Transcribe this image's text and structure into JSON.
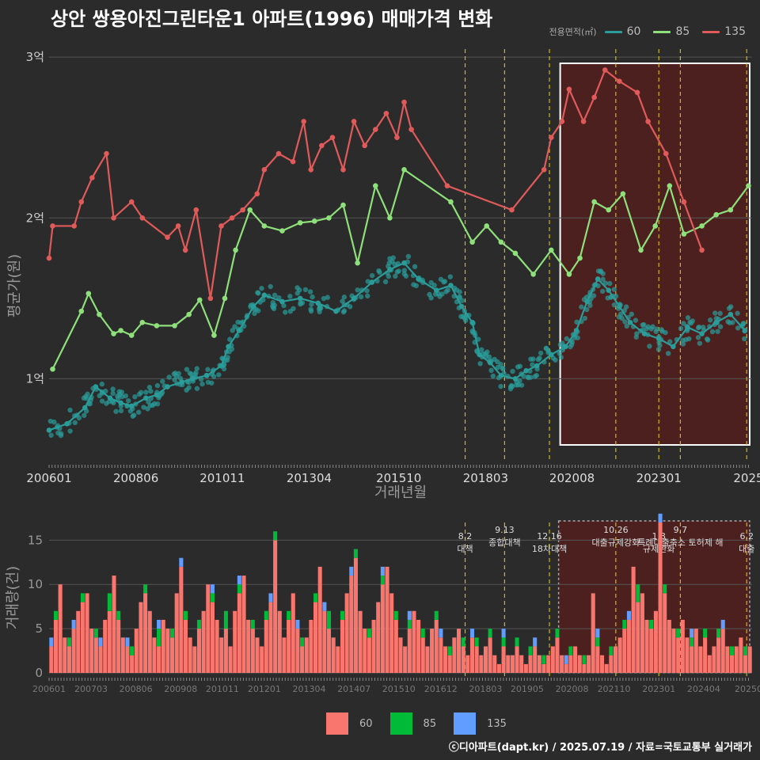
{
  "title": "상안 쌍용아진그린타운1 아파트(1996) 매매가격 변화",
  "credit": "ⓒ디아파트(dapt.kr) / 2025.07.19 / 자료=국토교통부 실거래가",
  "colors": {
    "s60": "#2a9d9a",
    "s85": "#8ee07a",
    "s135": "#e05a5a",
    "bar60": "#f8766d",
    "bar85": "#00ba38",
    "bar135": "#619cff",
    "vline": "#d4b800",
    "bg": "#2b2b2b",
    "grid": "#555555"
  },
  "legend_top": {
    "title": "전용면적(㎡)",
    "items": [
      {
        "label": "60",
        "color": "#2a9d9a"
      },
      {
        "label": "85",
        "color": "#8ee07a"
      },
      {
        "label": "135",
        "color": "#e05a5a"
      }
    ]
  },
  "legend_bottom": {
    "items": [
      {
        "label": "60",
        "color": "#f8766d"
      },
      {
        "label": "85",
        "color": "#00ba38"
      },
      {
        "label": "135",
        "color": "#619cff"
      }
    ]
  },
  "chart_data": [
    {
      "type": "line",
      "name": "price",
      "xlabel": "거래년월",
      "ylabel": "평균가(원)",
      "xlim": [
        2006.0,
        2025.6
      ],
      "ylim": [
        0.5,
        3.05
      ],
      "yticks": [
        {
          "v": 1,
          "label": "1억"
        },
        {
          "v": 2,
          "label": "2억"
        },
        {
          "v": 3,
          "label": "3억"
        }
      ],
      "xticks": [
        {
          "v": 2006.0,
          "label": "200601"
        },
        {
          "v": 2008.42,
          "label": "200806"
        },
        {
          "v": 2010.83,
          "label": "201011"
        },
        {
          "v": 2013.25,
          "label": "201304"
        },
        {
          "v": 2015.75,
          "label": "201510"
        },
        {
          "v": 2018.17,
          "label": "201803"
        },
        {
          "v": 2020.58,
          "label": "202008"
        },
        {
          "v": 2023.0,
          "label": "202301"
        },
        {
          "v": 2025.5,
          "label": "2025"
        }
      ],
      "highlight_range": [
        2020.25,
        2025.6
      ],
      "series": [
        {
          "name": "60",
          "color": "#2a9d9a",
          "x": [
            2006.0,
            2006.5,
            2007.0,
            2007.3,
            2007.7,
            2008.0,
            2008.3,
            2008.7,
            2009.0,
            2009.3,
            2009.7,
            2010.0,
            2010.4,
            2010.8,
            2011.0,
            2011.3,
            2011.7,
            2012.0,
            2012.5,
            2013.0,
            2013.5,
            2014.0,
            2014.5,
            2015.0,
            2015.5,
            2015.9,
            2016.3,
            2016.8,
            2017.2,
            2017.5,
            2017.8,
            2018.0,
            2018.3,
            2018.6,
            2019.0,
            2019.3,
            2019.6,
            2020.0,
            2020.4,
            2020.7,
            2021.0,
            2021.3,
            2021.6,
            2021.9,
            2022.2,
            2022.6,
            2023.0,
            2023.4,
            2023.8,
            2024.2,
            2024.6,
            2025.0,
            2025.4
          ],
          "values": [
            0.68,
            0.72,
            0.82,
            0.95,
            0.88,
            0.85,
            0.83,
            0.88,
            0.9,
            0.95,
            0.98,
            1.0,
            1.02,
            1.08,
            1.2,
            1.3,
            1.45,
            1.52,
            1.48,
            1.5,
            1.47,
            1.42,
            1.5,
            1.6,
            1.68,
            1.72,
            1.62,
            1.55,
            1.58,
            1.45,
            1.35,
            1.15,
            1.1,
            1.02,
            1.0,
            1.05,
            1.08,
            1.15,
            1.2,
            1.3,
            1.48,
            1.62,
            1.55,
            1.45,
            1.35,
            1.28,
            1.25,
            1.2,
            1.32,
            1.28,
            1.35,
            1.4,
            1.3
          ]
        },
        {
          "name": "85",
          "color": "#8ee07a",
          "x": [
            2006.1,
            2006.9,
            2007.1,
            2007.4,
            2007.8,
            2008.0,
            2008.3,
            2008.6,
            2009.0,
            2009.5,
            2009.9,
            2010.2,
            2010.6,
            2010.9,
            2011.2,
            2011.6,
            2012.0,
            2012.5,
            2013.0,
            2013.4,
            2013.8,
            2014.2,
            2014.6,
            2015.1,
            2015.5,
            2015.9,
            2017.2,
            2017.8,
            2018.2,
            2018.6,
            2019.0,
            2019.5,
            2020.0,
            2020.5,
            2020.8,
            2021.2,
            2021.6,
            2022.0,
            2022.5,
            2022.9,
            2023.3,
            2023.7,
            2024.2,
            2024.6,
            2025.0,
            2025.5
          ],
          "values": [
            1.06,
            1.42,
            1.53,
            1.4,
            1.28,
            1.3,
            1.27,
            1.35,
            1.33,
            1.33,
            1.4,
            1.49,
            1.27,
            1.5,
            1.8,
            2.05,
            1.95,
            1.92,
            1.97,
            1.98,
            2.0,
            2.08,
            1.72,
            2.2,
            2.0,
            2.3,
            2.1,
            1.85,
            1.95,
            1.85,
            1.78,
            1.65,
            1.8,
            1.65,
            1.75,
            2.1,
            2.05,
            2.15,
            1.8,
            1.95,
            2.2,
            1.9,
            1.95,
            2.02,
            2.05,
            2.2
          ]
        },
        {
          "name": "135",
          "color": "#e05a5a",
          "x": [
            2006.0,
            2006.1,
            2006.7,
            2006.9,
            2007.2,
            2007.6,
            2007.8,
            2008.3,
            2008.6,
            2009.3,
            2009.6,
            2009.8,
            2010.1,
            2010.5,
            2010.8,
            2011.1,
            2011.4,
            2011.8,
            2012.0,
            2012.4,
            2012.8,
            2013.1,
            2013.3,
            2013.6,
            2013.9,
            2014.2,
            2014.5,
            2014.8,
            2015.1,
            2015.4,
            2015.7,
            2015.9,
            2016.1,
            2017.1,
            2018.9,
            2019.8,
            2020.0,
            2020.3,
            2020.5,
            2020.9,
            2021.2,
            2021.5,
            2021.9,
            2022.4,
            2022.7,
            2023.2,
            2023.7,
            2024.2
          ],
          "values": [
            1.75,
            1.95,
            1.95,
            2.1,
            2.25,
            2.4,
            2.0,
            2.1,
            2.0,
            1.88,
            1.95,
            1.8,
            2.05,
            1.5,
            1.95,
            2.0,
            2.05,
            2.15,
            2.3,
            2.4,
            2.35,
            2.6,
            2.3,
            2.45,
            2.5,
            2.3,
            2.6,
            2.45,
            2.55,
            2.65,
            2.5,
            2.72,
            2.55,
            2.2,
            2.05,
            2.3,
            2.5,
            2.6,
            2.8,
            2.6,
            2.75,
            2.92,
            2.85,
            2.78,
            2.6,
            2.4,
            2.1,
            1.8
          ]
        }
      ]
    },
    {
      "type": "bar",
      "name": "volume",
      "ylabel": "거래량(건)",
      "ylim": [
        0,
        17
      ],
      "yticks": [
        0,
        5,
        10,
        15
      ],
      "xticks": [
        {
          "v": 2006.0,
          "label": "200601"
        },
        {
          "v": 2007.17,
          "label": "200703"
        },
        {
          "v": 2008.42,
          "label": "200806"
        },
        {
          "v": 2009.67,
          "label": "200908"
        },
        {
          "v": 2010.83,
          "label": "201011"
        },
        {
          "v": 2012.0,
          "label": "201201"
        },
        {
          "v": 2013.25,
          "label": "201304"
        },
        {
          "v": 2014.5,
          "label": "201407"
        },
        {
          "v": 2015.75,
          "label": "201510"
        },
        {
          "v": 2016.92,
          "label": "201612"
        },
        {
          "v": 2018.17,
          "label": "201803"
        },
        {
          "v": 2019.33,
          "label": "201905"
        },
        {
          "v": 2020.58,
          "label": "202008"
        },
        {
          "v": 2021.75,
          "label": "202110"
        },
        {
          "v": 2023.0,
          "label": "202301"
        },
        {
          "v": 2024.25,
          "label": "202404"
        },
        {
          "v": 2025.5,
          "label": "20250"
        }
      ],
      "series": [
        {
          "name": "60",
          "color": "#f8766d",
          "values": [
            3,
            6,
            10,
            4,
            3,
            5,
            7,
            8,
            9,
            5,
            4,
            3,
            6,
            7,
            11,
            6,
            4,
            3,
            2,
            5,
            8,
            9,
            7,
            4,
            3,
            6,
            5,
            4,
            9,
            12,
            6,
            4,
            3,
            5,
            7,
            10,
            8,
            6,
            4,
            5,
            3,
            7,
            9,
            11,
            6,
            5,
            4,
            3,
            6,
            8,
            15,
            7,
            4,
            6,
            9,
            5,
            3,
            4,
            6,
            8,
            12,
            7,
            5,
            4,
            3,
            6,
            9,
            11,
            13,
            7,
            5,
            4,
            6,
            8,
            10,
            12,
            9,
            6,
            4,
            3,
            5,
            7,
            6,
            4,
            3,
            5,
            6,
            4,
            3,
            2,
            4,
            5,
            3,
            2,
            4,
            3,
            2,
            3,
            4,
            2,
            1,
            3,
            2,
            2,
            3,
            2,
            1,
            2,
            3,
            2,
            1,
            2,
            3,
            4,
            2,
            1,
            2,
            3,
            2,
            1,
            2,
            9,
            3,
            2,
            1,
            2,
            3,
            4,
            5,
            6,
            12,
            8,
            9,
            6,
            5,
            7,
            17,
            9,
            6,
            5,
            4,
            6,
            4,
            3,
            5,
            3,
            4,
            2,
            3,
            4,
            5,
            3,
            2,
            3,
            4,
            2,
            3
          ]
        },
        {
          "name": "85",
          "color": "#00ba38",
          "values": [
            0,
            1,
            0,
            0,
            1,
            0,
            0,
            1,
            0,
            0,
            1,
            0,
            0,
            2,
            0,
            1,
            0,
            0,
            1,
            0,
            0,
            1,
            0,
            0,
            2,
            0,
            0,
            1,
            0,
            0,
            1,
            0,
            0,
            1,
            0,
            0,
            1,
            0,
            0,
            2,
            0,
            0,
            1,
            0,
            0,
            1,
            0,
            0,
            1,
            0,
            1,
            0,
            0,
            1,
            0,
            0,
            1,
            0,
            0,
            1,
            0,
            0,
            2,
            0,
            0,
            1,
            0,
            0,
            1,
            0,
            0,
            1,
            0,
            0,
            1,
            0,
            0,
            1,
            0,
            0,
            1,
            0,
            0,
            1,
            0,
            0,
            1,
            0,
            0,
            1,
            0,
            0,
            1,
            0,
            0,
            1,
            0,
            0,
            1,
            0,
            0,
            1,
            0,
            0,
            1,
            0,
            0,
            1,
            0,
            0,
            1,
            0,
            0,
            1,
            0,
            0,
            1,
            0,
            0,
            1,
            0,
            0,
            1,
            0,
            0,
            1,
            0,
            0,
            1,
            0,
            0,
            2,
            0,
            0,
            1,
            0,
            0,
            1,
            0,
            0,
            1,
            0,
            0,
            1,
            0,
            0,
            1,
            0,
            0,
            1,
            0,
            0,
            1,
            0,
            0,
            1,
            0
          ]
        },
        {
          "name": "135",
          "color": "#619cff",
          "values": [
            1,
            0,
            0,
            0,
            0,
            1,
            0,
            0,
            0,
            0,
            0,
            1,
            0,
            0,
            0,
            0,
            0,
            1,
            0,
            0,
            0,
            0,
            0,
            0,
            1,
            0,
            0,
            0,
            0,
            1,
            0,
            0,
            0,
            0,
            0,
            0,
            1,
            0,
            0,
            0,
            0,
            0,
            1,
            0,
            0,
            0,
            0,
            0,
            0,
            1,
            0,
            0,
            0,
            0,
            0,
            1,
            0,
            0,
            0,
            0,
            0,
            1,
            0,
            0,
            0,
            0,
            0,
            1,
            0,
            0,
            0,
            0,
            0,
            0,
            1,
            0,
            0,
            0,
            0,
            0,
            1,
            0,
            0,
            0,
            0,
            0,
            0,
            1,
            0,
            0,
            0,
            0,
            0,
            0,
            1,
            0,
            0,
            0,
            0,
            0,
            0,
            1,
            0,
            0,
            0,
            0,
            0,
            0,
            1,
            0,
            0,
            0,
            0,
            0,
            0,
            1,
            0,
            0,
            0,
            0,
            0,
            0,
            1,
            0,
            0,
            0,
            0,
            0,
            0,
            1,
            0,
            0,
            0,
            0,
            0,
            0,
            1,
            0,
            0,
            0,
            0,
            0,
            0,
            1,
            0,
            0,
            0,
            0,
            0,
            0,
            1,
            0,
            0,
            0,
            0,
            0,
            0
          ]
        }
      ]
    }
  ],
  "policy_events": [
    {
      "x": 2017.6,
      "date": "8.2",
      "label": "대책"
    },
    {
      "x": 2018.7,
      "date": "9.13",
      "label": "종합대책"
    },
    {
      "x": 2019.95,
      "date": "12.16",
      "label": "18차대책"
    },
    {
      "x": 2021.8,
      "date": "10.26",
      "label": "대출규제강화"
    },
    {
      "x": 2023.0,
      "date": "1.3",
      "label": "규제완화"
    },
    {
      "x": 2023.6,
      "date": "9.7",
      "label": "특례대출축소 토허제 해"
    },
    {
      "x": 2025.45,
      "date": "6.2",
      "label": "대출"
    }
  ]
}
